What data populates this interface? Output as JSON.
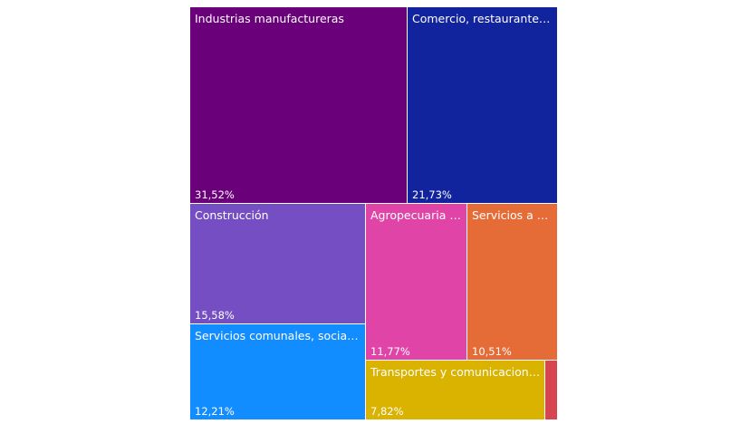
{
  "chart_data": {
    "type": "treemap",
    "items": [
      {
        "label": "Industrias manufactureras",
        "display_value": "31,52%",
        "value": 31.52,
        "color": "#6B007B"
      },
      {
        "label": "Comercio, restaurantes ...",
        "display_value": "21,73%",
        "value": 21.73,
        "color": "#12239E"
      },
      {
        "label": "Construcción",
        "display_value": "15,58%",
        "value": 15.58,
        "color": "#744EC2"
      },
      {
        "label": "Servicios comunales, sociales...",
        "display_value": "12,21%",
        "value": 12.21,
        "color": "#118DFF"
      },
      {
        "label": "Agropecuaria y...",
        "display_value": "11,77%",
        "value": 11.77,
        "color": "#E044A7"
      },
      {
        "label": "Servicios a e...",
        "display_value": "10,51%",
        "value": 10.51,
        "color": "#E66C37"
      },
      {
        "label": "Transportes y comunicaciones",
        "display_value": "7,82%",
        "value": 7.82,
        "color": "#D9B300"
      },
      {
        "label": "",
        "display_value": "",
        "value": 0.86,
        "color": "#D64550"
      }
    ]
  }
}
